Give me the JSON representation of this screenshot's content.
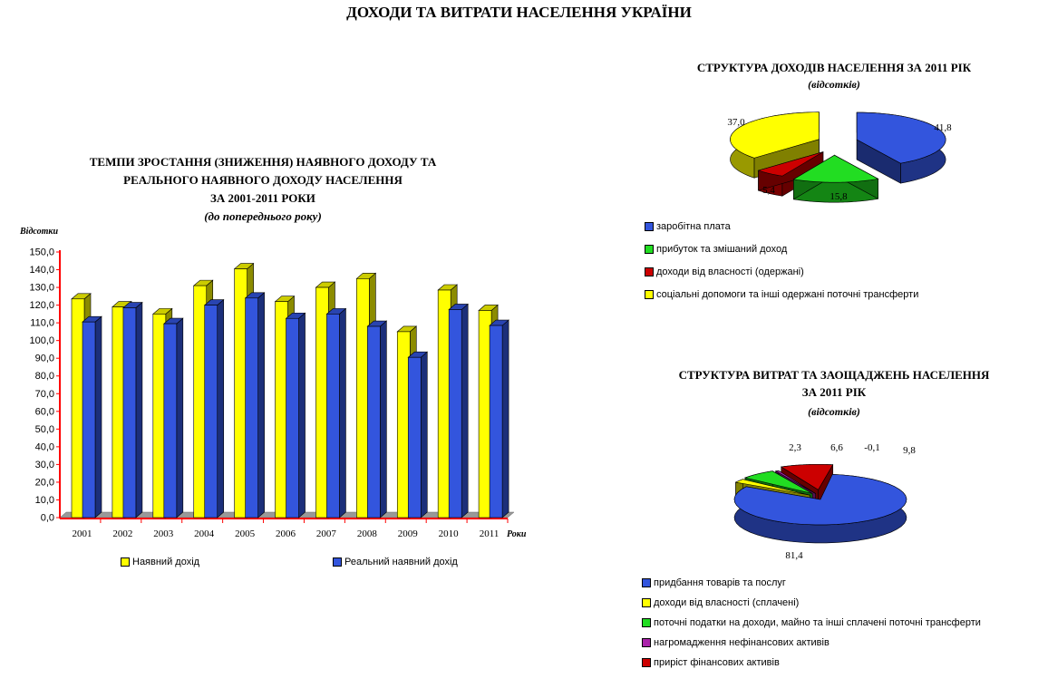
{
  "page": {
    "title": "ДОХОДИ ТА ВИТРАТИ НАСЕЛЕННЯ УКРАЇНИ"
  },
  "colors": {
    "yellow": "#ffff00",
    "blue": "#3355dd",
    "green": "#22dd22",
    "red": "#cc0000",
    "purple": "#aa22aa",
    "axis": "#ff0000"
  },
  "chart_data": [
    {
      "type": "bar",
      "title_lines": [
        "ТЕМПИ ЗРОСТАННЯ (ЗНИЖЕННЯ) НАЯВНОГО ДОХОДУ ТА",
        "РЕАЛЬНОГО НАЯВНОГО ДОХОДУ НАСЕЛЕННЯ",
        "ЗА 2001-2011 РОКИ"
      ],
      "subtitle": "(до попереднього року)",
      "ylabel": "Відсотки",
      "xlabel": "Роки",
      "ylim": [
        0,
        150
      ],
      "yticks": [
        "0,0",
        "10,0",
        "20,0",
        "30,0",
        "40,0",
        "50,0",
        "60,0",
        "70,0",
        "80,0",
        "90,0",
        "100,0",
        "110,0",
        "120,0",
        "130,0",
        "140,0",
        "150,0"
      ],
      "categories": [
        "2001",
        "2002",
        "2003",
        "2004",
        "2005",
        "2006",
        "2007",
        "2008",
        "2009",
        "2010",
        "2011"
      ],
      "series": [
        {
          "name": "Наявний дохід",
          "values": [
            123.5,
            119.0,
            115.0,
            131.0,
            140.5,
            122.0,
            130.0,
            135.0,
            105.0,
            128.5,
            117.0
          ]
        },
        {
          "name": "Реальний наявний дохід",
          "values": [
            110.5,
            118.5,
            109.5,
            120.0,
            124.0,
            112.5,
            115.0,
            108.0,
            90.5,
            117.5,
            108.5
          ]
        }
      ],
      "grid": false,
      "legend": "bottom"
    },
    {
      "type": "pie",
      "title": "СТРУКТУРА ДОХОДІВ НАСЕЛЕННЯ ЗА 2011 РІК",
      "subtitle": "(відсотків)",
      "slices": [
        {
          "label": "заробітна плата",
          "value": 41.8,
          "value_label": "41,8",
          "color": "#3355dd"
        },
        {
          "label": "прибуток та змішаний доход",
          "value": 15.8,
          "value_label": "15,8",
          "color": "#22dd22"
        },
        {
          "label": "доходи від власності (одержані)",
          "value": 5.4,
          "value_label": "5,4",
          "color": "#cc0000"
        },
        {
          "label": "соціальні допомоги та інші одержані поточні трансферти",
          "value": 37.0,
          "value_label": "37,0",
          "color": "#ffff00"
        }
      ],
      "legend": "bottom"
    },
    {
      "type": "pie",
      "title_lines": [
        "СТРУКТУРА ВИТРАТ ТА ЗАОЩАДЖЕНЬ НАСЕЛЕННЯ",
        "ЗА 2011 РІК"
      ],
      "subtitle": "(відсотків)",
      "slices": [
        {
          "label": "придбання товарів та послуг",
          "value": 81.4,
          "value_label": "81,4",
          "color": "#3355dd"
        },
        {
          "label": "доходи від власності (сплачені)",
          "value": 2.3,
          "value_label": "2,3",
          "color": "#ffff00"
        },
        {
          "label": "поточні податки на доходи, майно та інші сплачені поточні трансферти",
          "value": 6.6,
          "value_label": "6,6",
          "color": "#22dd22"
        },
        {
          "label": "нагромадження нефінансових активів",
          "value": -0.1,
          "value_label": "-0,1",
          "color": "#aa22aa"
        },
        {
          "label": "приріст фінансових активів",
          "value": 9.8,
          "value_label": "9,8",
          "color": "#cc0000"
        }
      ],
      "legend": "bottom"
    }
  ]
}
